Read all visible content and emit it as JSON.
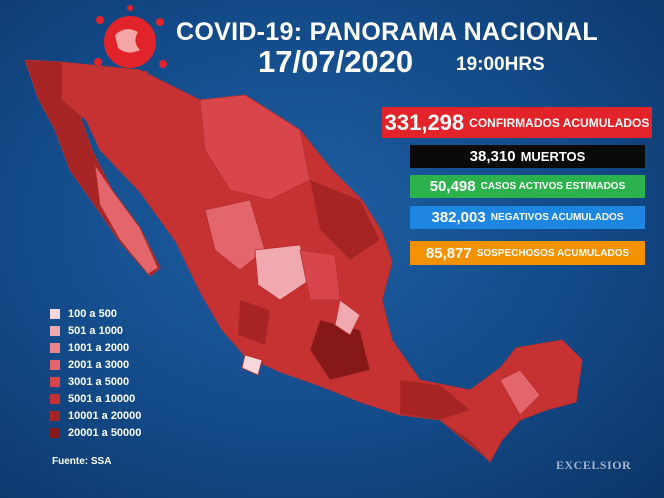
{
  "header": {
    "title": "COVID-19: PANORAMA NACIONAL",
    "date": "17/07/2020",
    "time": "19:00HRS"
  },
  "stats": [
    {
      "number": "331,298",
      "label": "CONFIRMADOS ACUMULADOS",
      "color": "#e3232a"
    },
    {
      "number": "38,310",
      "label": "MUERTOS",
      "color": "#0a0a0a"
    },
    {
      "number": "50,498",
      "label": "CASOS ACTIVOS ESTIMADOS",
      "color": "#2bb24c"
    },
    {
      "number": "382,003",
      "label": "NEGATIVOS ACUMULADOS",
      "color": "#1d86e0"
    },
    {
      "number": "85,877",
      "label": "SOSPECHOSOS ACUMULADOS",
      "color": "#f39200"
    }
  ],
  "legend": [
    {
      "label": "100 a 500",
      "color": "#f8d7dc"
    },
    {
      "label": "501 a 1000",
      "color": "#f1a9b0"
    },
    {
      "label": "1001 a 2000",
      "color": "#ea858c"
    },
    {
      "label": "2001 a 3000",
      "color": "#e2666c"
    },
    {
      "label": "3001 a 5000",
      "color": "#d8454a"
    },
    {
      "label": "5001 a 10000",
      "color": "#c63232"
    },
    {
      "label": "10001 a 20000",
      "color": "#a62424"
    },
    {
      "label": "20001 a 50000",
      "color": "#861818"
    }
  ],
  "source": "Fuente: SSA",
  "brand": "EXCELSIOR"
}
